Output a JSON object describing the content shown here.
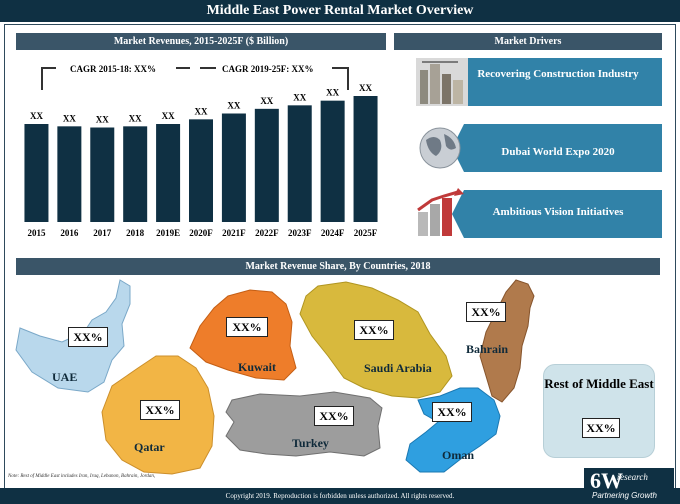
{
  "page_title": "Middle East Power Rental Market Overview",
  "left_header": "Market Revenues, 2015-2025F ($ Billion)",
  "right_header": "Market Drivers",
  "map_header": "Market Revenue Share, By Countries, 2018",
  "cagr1": "CAGR 2015-18: XX%",
  "cagr2": "CAGR 2019-25F: XX%",
  "chart_data": {
    "type": "bar",
    "categories": [
      "2015",
      "2016",
      "2017",
      "2018",
      "2019E",
      "2020F",
      "2021F",
      "2022F",
      "2023F",
      "2024F",
      "2025F"
    ],
    "data_labels": [
      "XX",
      "XX",
      "XX",
      "XX",
      "XX",
      "XX",
      "XX",
      "XX",
      "XX",
      "XX",
      "XX"
    ],
    "values": [
      8.4,
      8.2,
      8.1,
      8.2,
      8.4,
      8.8,
      9.3,
      9.7,
      10.0,
      10.4,
      10.8
    ],
    "ylim": [
      0,
      12
    ],
    "bar_color": "#0f3043"
  },
  "drivers": [
    {
      "label": "Recovering Construction Industry",
      "icon": "construction-icon"
    },
    {
      "label": "Dubai World Expo 2020",
      "icon": "globe-icon"
    },
    {
      "label": "Ambitious Vision Initiatives",
      "icon": "growth-icon"
    }
  ],
  "countries": {
    "uae": {
      "name": "UAE",
      "value": "XX%",
      "color": "#b9d8ec"
    },
    "kuwait": {
      "name": "Kuwait",
      "value": "XX%",
      "color": "#ee7d2a"
    },
    "saudi": {
      "name": "Saudi Arabia",
      "value": "XX%",
      "color": "#d8b93d"
    },
    "bahrain": {
      "name": "Bahrain",
      "value": "XX%",
      "color": "#b07a4c"
    },
    "qatar": {
      "name": "Qatar",
      "value": "XX%",
      "color": "#f2b545"
    },
    "turkey": {
      "name": "Turkey",
      "value": "XX%",
      "color": "#9d9d9d"
    },
    "oman": {
      "name": "Oman",
      "value": "XX%",
      "color": "#2f9fe0"
    },
    "rest": {
      "name": "Rest of Middle East",
      "value": "XX%",
      "color": "#cfe3ea"
    }
  },
  "note": "Note: Rest of Middle East includes Iran, Iraq, Lebanon, Bahrain, Jordan,",
  "footer": "Copyright 2019. Reproduction is forbidden unless authorized. All rights reserved.",
  "logo_main": "6W",
  "logo_small": "research",
  "logo_sub": "Partnering Growth"
}
